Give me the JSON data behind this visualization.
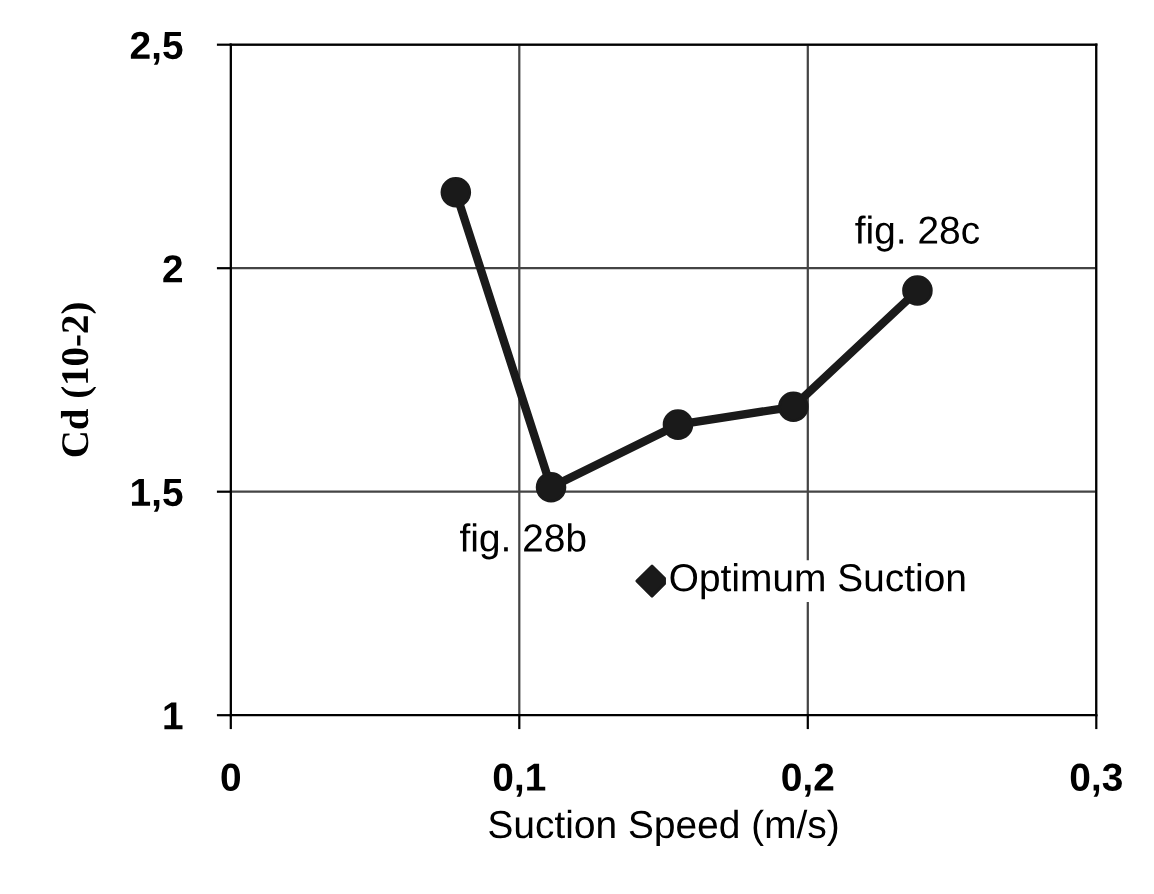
{
  "chart_data": {
    "type": "line",
    "xlabel": "Suction Speed (m/s)",
    "ylabel": "Cd (10-2)",
    "xlim": [
      0,
      0.3
    ],
    "xticks": [
      {
        "value": 0,
        "label": "0"
      },
      {
        "value": 0.1,
        "label": "0,1"
      },
      {
        "value": 0.2,
        "label": "0,2"
      },
      {
        "value": 0.3,
        "label": "0,3"
      }
    ],
    "ylim": [
      1,
      2.5
    ],
    "yticks": [
      {
        "value": 1,
        "label": "1"
      },
      {
        "value": 1.5,
        "label": "1,5"
      },
      {
        "value": 2,
        "label": "2"
      },
      {
        "value": 2.5,
        "label": "2,5"
      }
    ],
    "grid": true,
    "legend": false,
    "series": [
      {
        "color": "#1a1a1a",
        "marker": "circle",
        "x": [
          0.078,
          0.111,
          0.155,
          0.195,
          0.238
        ],
        "values": [
          2.17,
          1.51,
          1.65,
          1.69,
          1.95
        ]
      },
      {
        "type": "scatter",
        "name": "Optimum Suction",
        "color": "#1a1a1a",
        "marker": "diamond",
        "x": [
          0.146
        ],
        "values": [
          1.3
        ]
      }
    ],
    "annotations": [
      {
        "text": "fig. 28b",
        "x": 0.111,
        "y": 1.51
      },
      {
        "text": "fig. 28c",
        "x": 0.238,
        "y": 1.95
      }
    ]
  }
}
